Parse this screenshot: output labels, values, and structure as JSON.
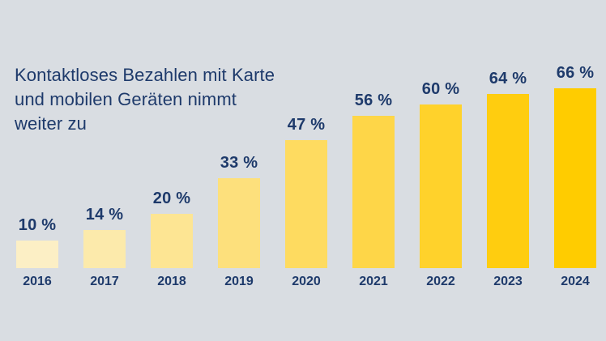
{
  "colors": {
    "background": "#D9DDE2",
    "text": "#1E3A6B"
  },
  "title": {
    "line1": "Kontaktloses Bezahlen mit Karte",
    "line2": "und mobilen Geräten nimmt",
    "line3": "weiter zu"
  },
  "chart_data": {
    "type": "bar",
    "title": "Kontaktloses Bezahlen mit Karte und mobilen Geräten nimmt weiter zu",
    "categories": [
      "2016",
      "2017",
      "2018",
      "2019",
      "2020",
      "2021",
      "2022",
      "2023",
      "2024"
    ],
    "values": [
      10,
      14,
      20,
      33,
      47,
      56,
      60,
      64,
      66
    ],
    "value_labels": [
      "10 %",
      "14 %",
      "20 %",
      "33 %",
      "47 %",
      "56 %",
      "60 %",
      "64 %",
      "66 %"
    ],
    "unit": "%",
    "xlabel": "",
    "ylabel": "",
    "ylim": [
      0,
      70
    ],
    "grid": false,
    "legend": false,
    "bar_colors": [
      "#FCEFC5",
      "#FCEAAB",
      "#FDE593",
      "#FDE07C",
      "#FEDB60",
      "#FED648",
      "#FFD22B",
      "#FFCD0F",
      "#FFCC00"
    ]
  }
}
